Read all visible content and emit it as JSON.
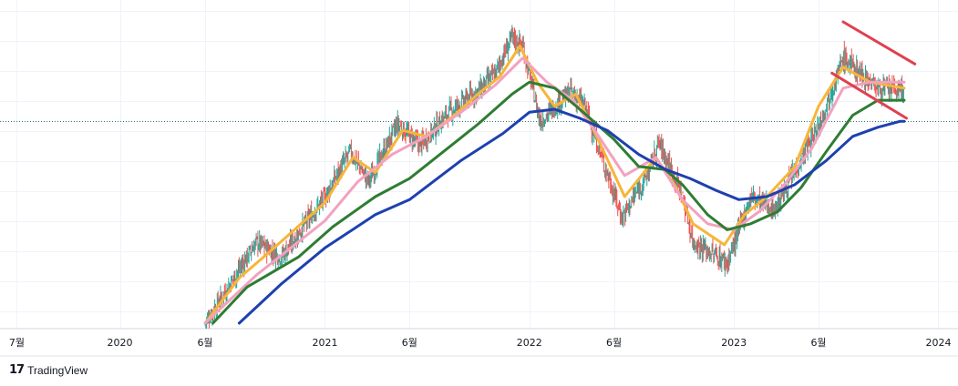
{
  "watermark": {
    "logo": "17",
    "text": "TradingView"
  },
  "chart_data": {
    "type": "line",
    "x_tick_labels": [
      "7월",
      "2020",
      "6월",
      "2021",
      "6월",
      "2022",
      "6월",
      "2023",
      "6월",
      "2024"
    ],
    "x_ticks": [
      "2019-07-01",
      "2020-01-01",
      "2020-06-01",
      "2021-01-01",
      "2021-06-01",
      "2022-01-01",
      "2022-06-01",
      "2023-01-01",
      "2023-06-01",
      "2024-01-01"
    ],
    "xlim": [
      "2019-06-01",
      "2024-02-05"
    ],
    "ylim": [
      0,
      100
    ],
    "y_axis_labels_shown": false,
    "grid": true,
    "price_line_level": 67,
    "candles": {
      "up_color": "#26a69a",
      "down_color": "#ef5350",
      "close_path": [
        [
          "2020-06-01",
          0
        ],
        [
          "2020-08-01",
          18
        ],
        [
          "2020-09-01",
          27
        ],
        [
          "2020-10-15",
          22
        ],
        [
          "2021-01-01",
          42
        ],
        [
          "2021-02-15",
          57
        ],
        [
          "2021-03-20",
          47
        ],
        [
          "2021-05-10",
          66
        ],
        [
          "2021-06-20",
          59
        ],
        [
          "2021-08-10",
          70
        ],
        [
          "2021-10-01",
          77
        ],
        [
          "2021-11-01",
          83
        ],
        [
          "2021-12-01",
          95
        ],
        [
          "2021-12-20",
          92
        ],
        [
          "2022-01-20",
          67
        ],
        [
          "2022-03-15",
          77
        ],
        [
          "2022-04-10",
          72
        ],
        [
          "2022-06-15",
          35
        ],
        [
          "2022-08-01",
          50
        ],
        [
          "2022-08-20",
          60
        ],
        [
          "2022-09-30",
          43
        ],
        [
          "2022-10-20",
          27
        ],
        [
          "2022-12-20",
          20
        ],
        [
          "2023-01-31",
          42
        ],
        [
          "2023-03-15",
          38
        ],
        [
          "2023-05-31",
          65
        ],
        [
          "2023-07-15",
          88
        ],
        [
          "2023-09-15",
          78
        ],
        [
          "2023-11-01",
          77
        ]
      ]
    },
    "series": [
      {
        "name": "",
        "color": "#f7b538",
        "points": [
          [
            "2020-06-01",
            0
          ],
          [
            "2020-08-01",
            15
          ],
          [
            "2020-09-20",
            23
          ],
          [
            "2021-01-01",
            40
          ],
          [
            "2021-02-20",
            55
          ],
          [
            "2021-04-01",
            50
          ],
          [
            "2021-05-20",
            64
          ],
          [
            "2021-07-01",
            62
          ],
          [
            "2021-08-20",
            69
          ],
          [
            "2021-10-01",
            76
          ],
          [
            "2021-11-10",
            82
          ],
          [
            "2021-12-15",
            92
          ],
          [
            "2022-01-15",
            80
          ],
          [
            "2022-02-15",
            72
          ],
          [
            "2022-03-25",
            76
          ],
          [
            "2022-05-01",
            62
          ],
          [
            "2022-06-20",
            42
          ],
          [
            "2022-08-15",
            55
          ],
          [
            "2022-09-20",
            45
          ],
          [
            "2022-10-20",
            33
          ],
          [
            "2022-12-15",
            26
          ],
          [
            "2023-01-20",
            36
          ],
          [
            "2023-03-01",
            42
          ],
          [
            "2023-04-20",
            52
          ],
          [
            "2023-06-01",
            72
          ],
          [
            "2023-07-15",
            85
          ],
          [
            "2023-09-01",
            80
          ],
          [
            "2023-11-01",
            78
          ]
        ]
      },
      {
        "name": "",
        "color": "#f2a2c0",
        "points": [
          [
            "2020-06-01",
            0
          ],
          [
            "2020-09-01",
            16
          ],
          [
            "2020-11-01",
            25
          ],
          [
            "2021-01-01",
            34
          ],
          [
            "2021-03-01",
            47
          ],
          [
            "2021-05-01",
            56
          ],
          [
            "2021-07-01",
            62
          ],
          [
            "2021-09-01",
            70
          ],
          [
            "2021-11-01",
            79
          ],
          [
            "2021-12-20",
            88
          ],
          [
            "2022-02-01",
            80
          ],
          [
            "2022-03-20",
            74
          ],
          [
            "2022-05-01",
            63
          ],
          [
            "2022-06-20",
            49
          ],
          [
            "2022-08-15",
            55
          ],
          [
            "2022-10-01",
            41
          ],
          [
            "2022-11-15",
            33
          ],
          [
            "2023-01-01",
            31
          ],
          [
            "2023-02-15",
            37
          ],
          [
            "2023-04-01",
            46
          ],
          [
            "2023-05-20",
            58
          ],
          [
            "2023-07-15",
            78
          ],
          [
            "2023-09-01",
            80
          ],
          [
            "2023-11-01",
            80
          ]
        ]
      },
      {
        "name": "",
        "color": "#2e7d32",
        "points": [
          [
            "2020-06-15",
            0
          ],
          [
            "2020-08-15",
            12
          ],
          [
            "2020-11-15",
            22
          ],
          [
            "2021-01-15",
            32
          ],
          [
            "2021-04-01",
            42
          ],
          [
            "2021-06-01",
            48
          ],
          [
            "2021-08-01",
            57
          ],
          [
            "2021-10-01",
            66
          ],
          [
            "2021-12-01",
            76
          ],
          [
            "2022-01-01",
            80
          ],
          [
            "2022-02-15",
            78
          ],
          [
            "2022-04-01",
            71
          ],
          [
            "2022-06-01",
            61
          ],
          [
            "2022-07-15",
            52
          ],
          [
            "2022-08-31",
            51
          ],
          [
            "2022-10-01",
            46
          ],
          [
            "2022-11-15",
            36
          ],
          [
            "2022-12-20",
            31
          ],
          [
            "2023-01-31",
            33
          ],
          [
            "2023-03-20",
            37
          ],
          [
            "2023-05-01",
            45
          ],
          [
            "2023-06-15",
            57
          ],
          [
            "2023-08-01",
            69
          ],
          [
            "2023-09-15",
            74
          ],
          [
            "2023-11-01",
            74
          ]
        ]
      },
      {
        "name": "",
        "color": "#1e40af",
        "points": [
          [
            "2020-08-01",
            0
          ],
          [
            "2020-10-15",
            13
          ],
          [
            "2021-01-01",
            25
          ],
          [
            "2021-04-01",
            36
          ],
          [
            "2021-06-01",
            41
          ],
          [
            "2021-09-01",
            54
          ],
          [
            "2021-11-15",
            63
          ],
          [
            "2022-01-01",
            70
          ],
          [
            "2022-02-15",
            71
          ],
          [
            "2022-04-01",
            68
          ],
          [
            "2022-05-20",
            64
          ],
          [
            "2022-07-15",
            56
          ],
          [
            "2022-09-01",
            51
          ],
          [
            "2022-10-15",
            48
          ],
          [
            "2022-12-01",
            44
          ],
          [
            "2023-01-10",
            41
          ],
          [
            "2023-03-01",
            42
          ],
          [
            "2023-04-20",
            46
          ],
          [
            "2023-06-15",
            54
          ],
          [
            "2023-08-01",
            62
          ],
          [
            "2023-09-15",
            65
          ],
          [
            "2023-10-25",
            67
          ],
          [
            "2023-11-01",
            67
          ]
        ]
      }
    ],
    "annotations": [
      {
        "type": "trendline",
        "color": "#e0404f",
        "from": [
          "2023-07-15",
          100
        ],
        "to": [
          "2023-11-20",
          86
        ]
      },
      {
        "type": "trendline",
        "color": "#e0404f",
        "from": [
          "2023-06-25",
          83
        ],
        "to": [
          "2023-11-05",
          68
        ]
      }
    ]
  }
}
